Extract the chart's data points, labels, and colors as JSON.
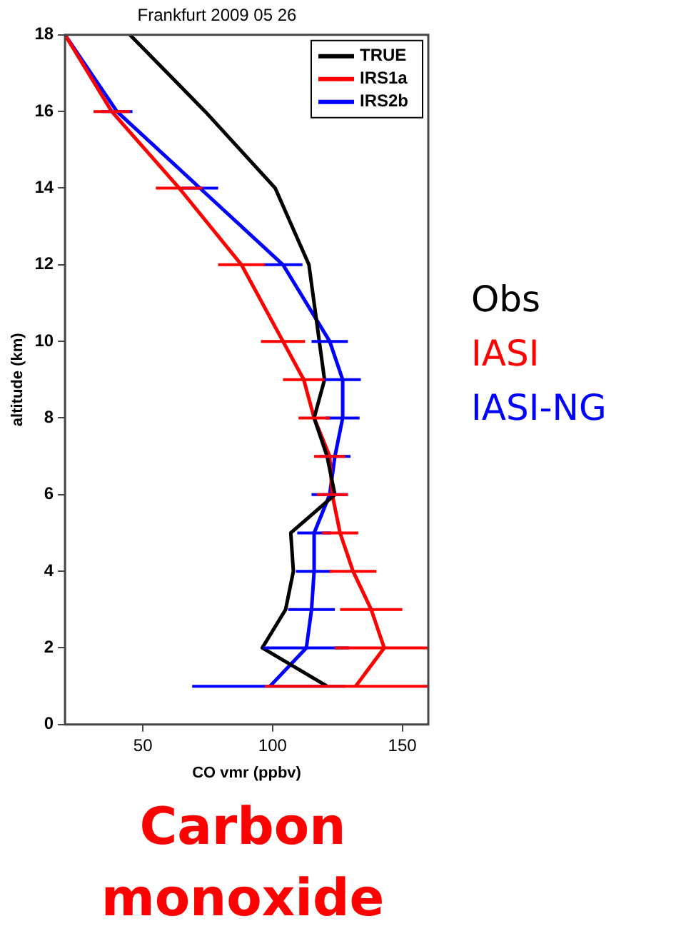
{
  "chart_data": {
    "type": "line",
    "title": "Frankfurt 2009 05 26",
    "xlabel": "CO vmr (ppbv)",
    "ylabel": "altitude (km)",
    "xlim": [
      20,
      160
    ],
    "xticks": [
      50,
      100,
      150
    ],
    "ylim": [
      0,
      18
    ],
    "yticks": [
      0,
      2,
      4,
      6,
      8,
      10,
      12,
      14,
      16,
      18
    ],
    "grid": false,
    "legend": "top right",
    "marker": "none",
    "line_style": "solid",
    "series": [
      {
        "name": "TRUE",
        "color": "#000000",
        "x": [
          45,
          74,
          101,
          114,
          118,
          120,
          116,
          121,
          124,
          107,
          108,
          105,
          96,
          121
        ],
        "values": [
          18,
          16,
          14,
          12,
          10,
          9,
          8,
          7,
          6,
          5,
          4,
          3,
          2,
          1
        ]
      },
      {
        "name": "IRS1a",
        "color": "#ff0000",
        "x": [
          20,
          38,
          64,
          88,
          104,
          112,
          116,
          122,
          123,
          126,
          131,
          138,
          143,
          132
        ],
        "values": [
          18,
          16,
          14,
          12,
          10,
          9,
          8,
          7,
          6,
          5,
          4,
          3,
          2,
          1
        ],
        "xerrors": [
          null,
          7,
          9,
          9,
          8.5,
          8,
          6,
          6,
          6,
          7,
          9,
          12,
          [
            124,
            160
          ],
          [
            97,
            160
          ]
        ]
      },
      {
        "name": "IRS2b",
        "color": "#0000ff",
        "x": [
          20,
          40,
          72,
          104,
          122,
          127,
          127,
          124,
          122,
          116,
          116,
          115,
          113,
          99
        ],
        "values": [
          18,
          16,
          14,
          12,
          10,
          9,
          8,
          7,
          6,
          5,
          4,
          3,
          2,
          1
        ],
        "xerrors": [
          null,
          6,
          7,
          7.5,
          7,
          7,
          6.5,
          6,
          7,
          6.5,
          7,
          9,
          16.5,
          [
            69,
            128
          ]
        ]
      }
    ],
    "annotations": [
      "Obs",
      "IASI",
      "IASI-NG",
      "Carbon monoxide"
    ]
  }
}
